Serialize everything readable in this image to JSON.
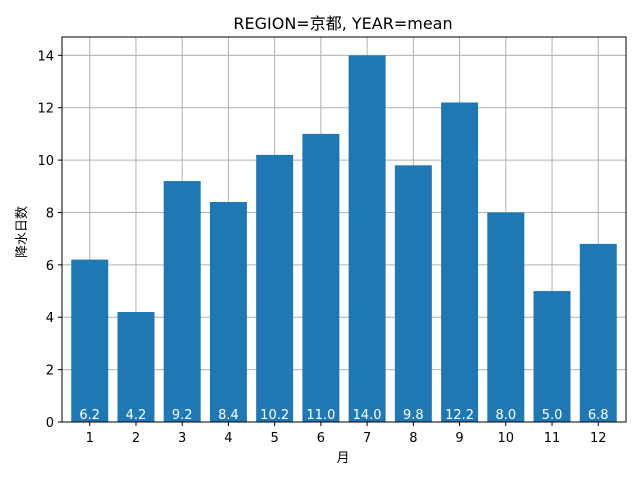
{
  "chart_data": {
    "type": "bar",
    "title": "REGION=京都, YEAR=mean",
    "xlabel": "月",
    "ylabel": "降水日数",
    "categories": [
      "1",
      "2",
      "3",
      "4",
      "5",
      "6",
      "7",
      "8",
      "9",
      "10",
      "11",
      "12"
    ],
    "values": [
      6.2,
      4.2,
      9.2,
      8.4,
      10.2,
      11.0,
      14.0,
      9.8,
      12.2,
      8.0,
      5.0,
      6.8
    ],
    "data_labels": [
      "6.2",
      "4.2",
      "9.2",
      "8.4",
      "10.2",
      "11.0",
      "14.0",
      "9.8",
      "12.2",
      "8.0",
      "5.0",
      "6.8"
    ],
    "yticks": [
      0,
      2,
      4,
      6,
      8,
      10,
      12,
      14
    ],
    "ylim": [
      0,
      14.7
    ],
    "grid": true,
    "bar_color": "#1f77b4",
    "label_color": "#ffffff"
  }
}
